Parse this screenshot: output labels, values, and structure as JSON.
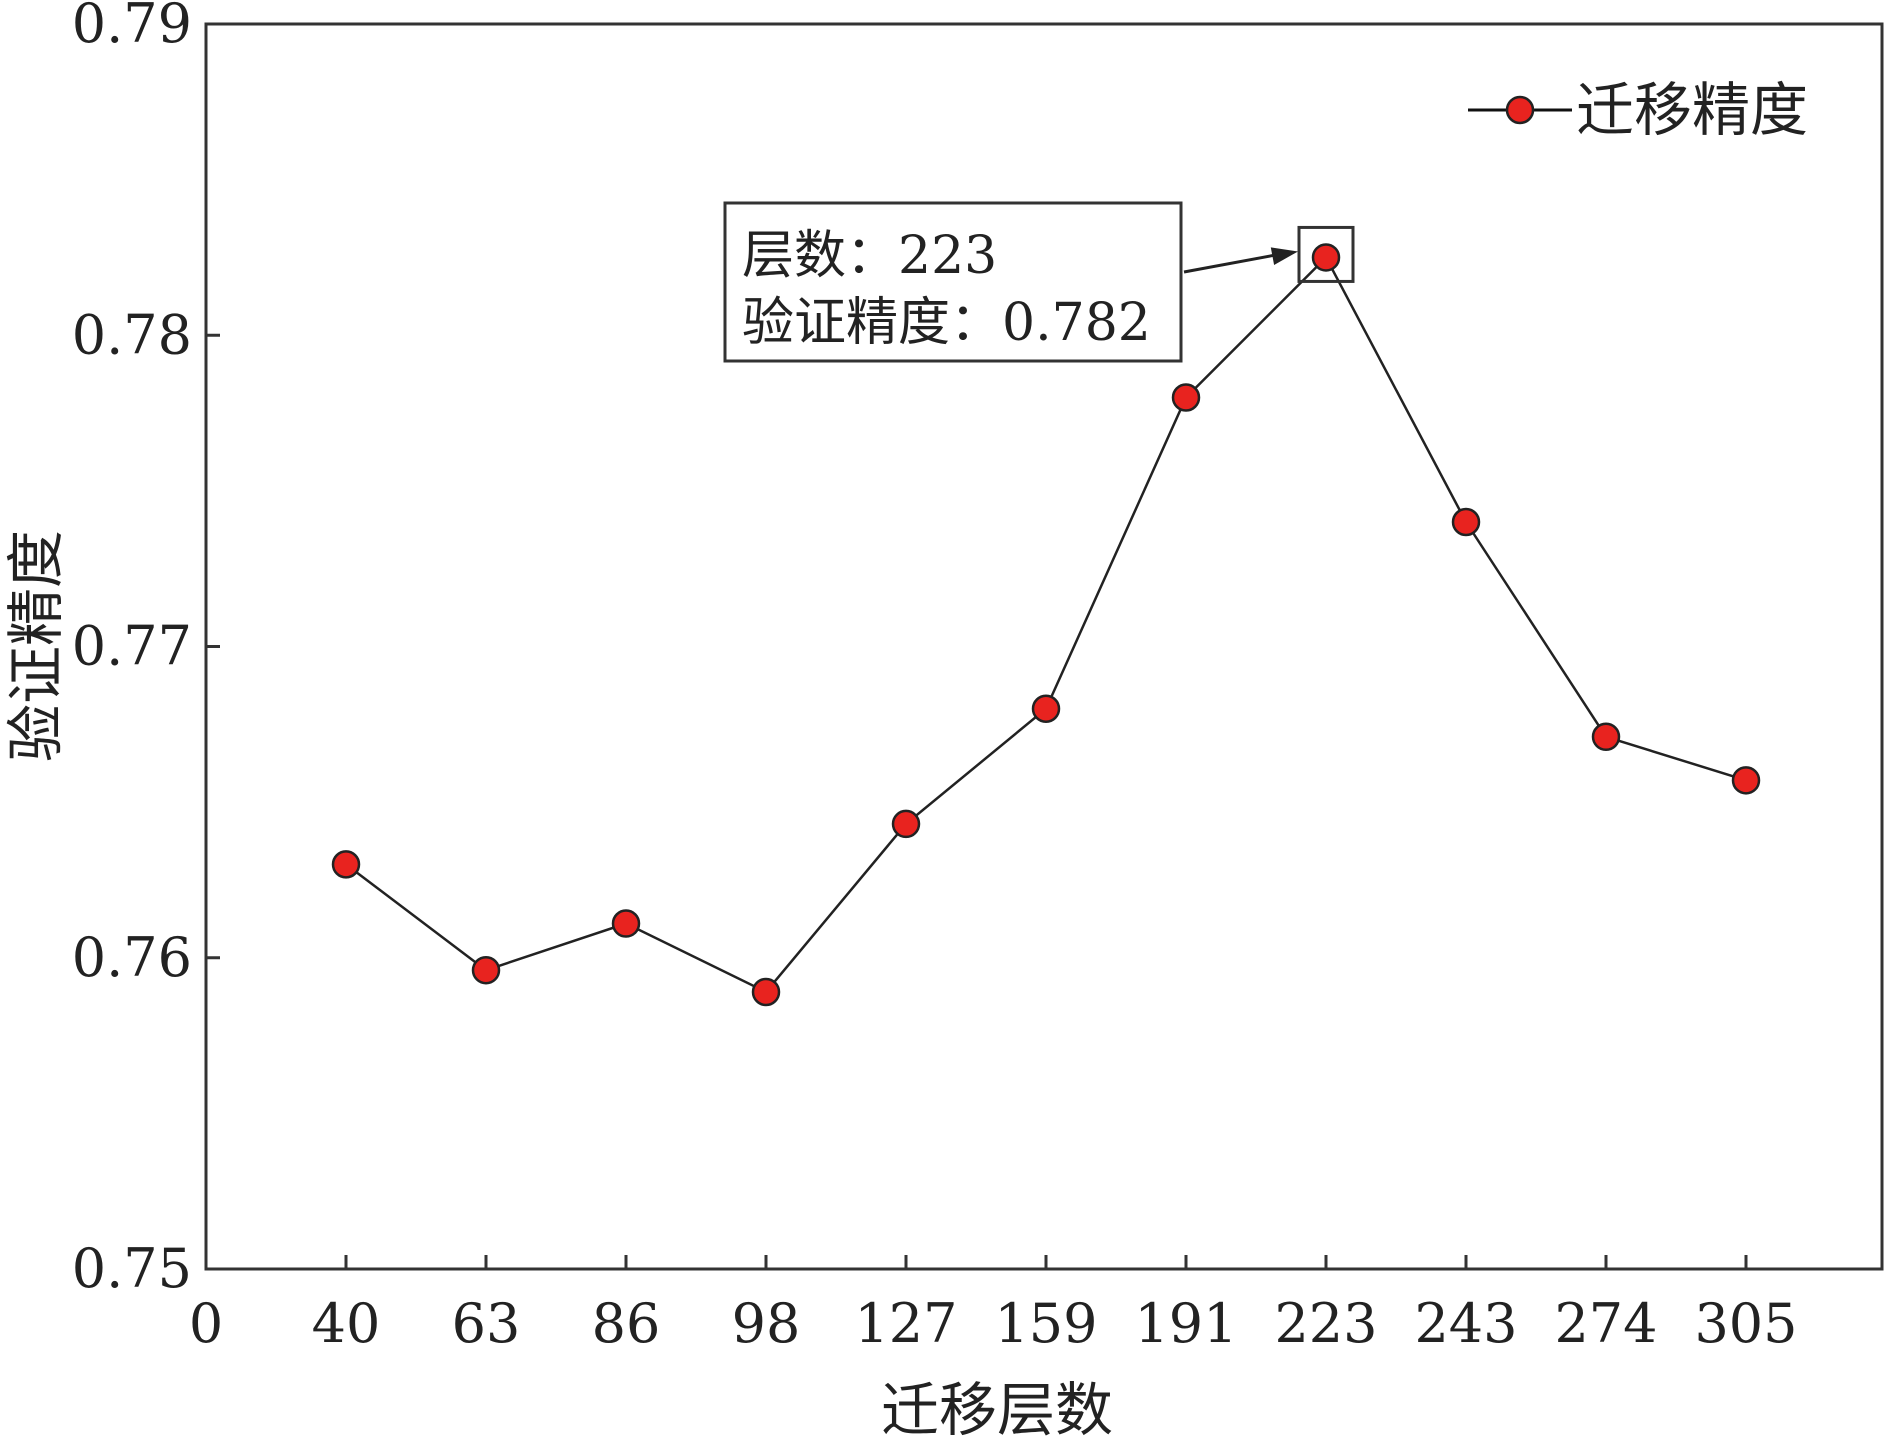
{
  "chart_data": {
    "type": "line",
    "xlabel": "迁移层数",
    "ylabel": "验证精度",
    "x_ticks": [
      "0",
      "40",
      "63",
      "86",
      "98",
      "127",
      "159",
      "191",
      "223",
      "243",
      "274",
      "305"
    ],
    "y_ticks": [
      "0.75",
      "0.76",
      "0.77",
      "0.78",
      "0.79"
    ],
    "ylim": [
      0.75,
      0.79
    ],
    "grid": false,
    "legend_position": "top-right",
    "series": [
      {
        "name": "迁移精度",
        "color": "#e8231f",
        "x": [
          "40",
          "63",
          "86",
          "98",
          "127",
          "159",
          "191",
          "223",
          "243",
          "274",
          "305"
        ],
        "values": [
          0.763,
          0.7596,
          0.7611,
          0.7589,
          0.7643,
          0.768,
          0.778,
          0.7825,
          0.774,
          0.7671,
          0.7657
        ]
      }
    ],
    "annotation": {
      "target_x": "223",
      "line1": "层数：223",
      "line2": "验证精度：0.782"
    }
  }
}
